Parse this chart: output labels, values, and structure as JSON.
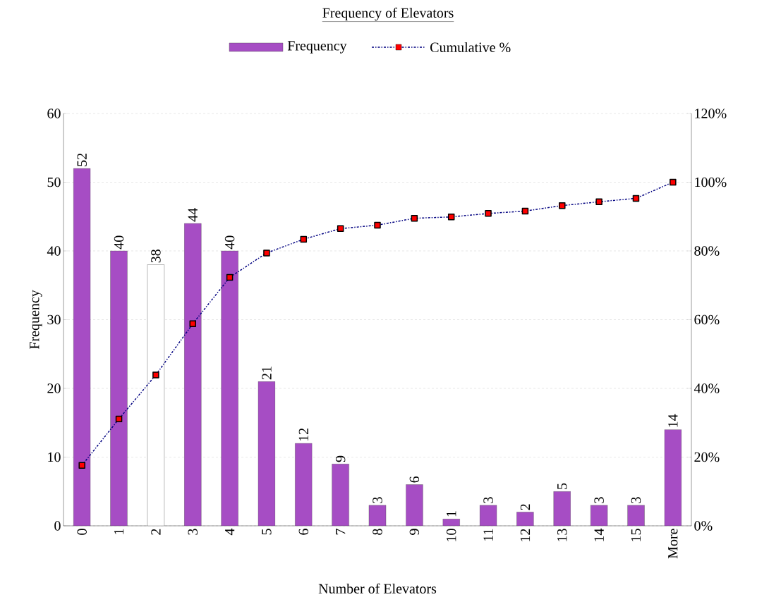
{
  "chart_data": {
    "type": "bar",
    "title": "Frequency of Elevators",
    "xlabel": "Number of Elevators",
    "ylabel": "Frequency",
    "categories": [
      "0",
      "1",
      "2",
      "3",
      "4",
      "5",
      "6",
      "7",
      "8",
      "9",
      "10",
      "11",
      "12",
      "13",
      "14",
      "15",
      "More"
    ],
    "series": [
      {
        "name": "Frequency",
        "color": "#a64dc4",
        "colors": [
          "#a64dc4",
          "#a64dc4",
          "#ffffff",
          "#a64dc4",
          "#a64dc4",
          "#a64dc4",
          "#a64dc4",
          "#a64dc4",
          "#a64dc4",
          "#a64dc4",
          "#a64dc4",
          "#a64dc4",
          "#a64dc4",
          "#a64dc4",
          "#a64dc4",
          "#a64dc4",
          "#a64dc4"
        ],
        "values": [
          52,
          40,
          38,
          44,
          40,
          21,
          12,
          9,
          3,
          6,
          1,
          3,
          2,
          5,
          3,
          3,
          14
        ],
        "value_labels": [
          "52",
          "40",
          "38",
          "44",
          "40",
          "21",
          "12",
          "9",
          "3",
          "6",
          "1",
          "3",
          "2",
          "5",
          "3",
          "3",
          "14"
        ]
      },
      {
        "name": "Cumulative %",
        "type": "line",
        "axis": "y2",
        "color": "#000080",
        "marker": "square",
        "line_style": "dashdotted",
        "values": [
          17.6,
          31.1,
          43.9,
          58.8,
          72.3,
          79.4,
          83.4,
          86.5,
          87.5,
          89.5,
          89.9,
          90.9,
          91.6,
          93.2,
          94.3,
          95.3,
          100
        ]
      }
    ],
    "ylim": [
      0,
      60
    ],
    "yticks": [
      0,
      10,
      20,
      30,
      40,
      50,
      60
    ],
    "y2lim": [
      0,
      120
    ],
    "y2ticks": [
      {
        "value": 0,
        "label": "0%"
      },
      {
        "value": 20,
        "label": "20%"
      },
      {
        "value": 40,
        "label": "40%"
      },
      {
        "value": 60,
        "label": "60%"
      },
      {
        "value": 80,
        "label": "80%"
      },
      {
        "value": 100,
        "label": "100%"
      },
      {
        "value": 120,
        "label": "120%"
      }
    ],
    "grid": "y",
    "legend": "top"
  }
}
